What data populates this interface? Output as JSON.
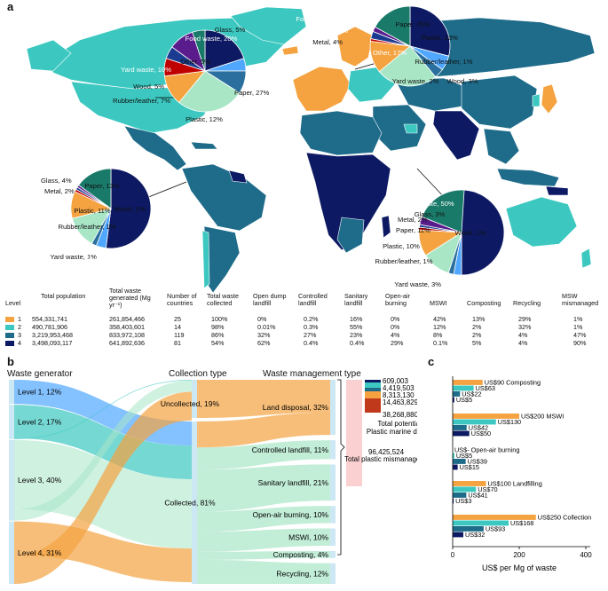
{
  "panel_labels": {
    "a": "a",
    "b": "b",
    "c": "c"
  },
  "colors": {
    "level1": "#f4a340",
    "level2": "#3cc8c0",
    "level3": "#1e6b8a",
    "level4": "#0d1a63",
    "ocean": "#ffffff",
    "nodata": "#d8d8d8",
    "waste_categories": {
      "Food waste": "#0d1a63",
      "Glass": "#4fa7ff",
      "Metal": "#2b6f9e",
      "Paper": "#a8e6c6",
      "Plastic": "#f4a340",
      "Rubber/leather": "#c00000",
      "Wood": "#1a3b8f",
      "Yard waste": "#5a1c8c",
      "Other": "#1a7a6a"
    }
  },
  "pie_annotations": {
    "pie1": [
      {
        "label": "Other, 5%"
      },
      {
        "label": "Food waste, 20%"
      },
      {
        "label": "Glass, 5%"
      },
      {
        "label": "Metal, 9%"
      },
      {
        "label": "Paper, 27%"
      },
      {
        "label": "Plastic, 12%"
      },
      {
        "label": "Rubber/leather, 7%"
      },
      {
        "label": "Wood, 5%"
      },
      {
        "label": "Yard waste, 10%"
      }
    ],
    "pie2": [
      {
        "label": "Yard waste, 2%"
      },
      {
        "label": "Wood, 3%"
      },
      {
        "label": "Rubber/leather, 1%"
      },
      {
        "label": "Other, 17%"
      },
      {
        "label": "Food waste, 29%"
      },
      {
        "label": "Glass, 6%"
      },
      {
        "label": "Metal, 4%"
      },
      {
        "label": "Paper, 25%"
      },
      {
        "label": "Plastic, 13%"
      }
    ],
    "pie3": [
      {
        "label": "Yard waste, 1%"
      },
      {
        "label": "Wood, 1%"
      },
      {
        "label": "Rubber/leather, 1%"
      },
      {
        "label": "Other, 15%"
      },
      {
        "label": "Plastic, 11%"
      },
      {
        "label": "Paper, 13%"
      },
      {
        "label": "Food waste, 52%"
      },
      {
        "label": "Metal, 2%"
      },
      {
        "label": "Glass, 4%"
      }
    ],
    "pie4": [
      {
        "label": "Yard waste, 3%"
      },
      {
        "label": "Other, 20%"
      },
      {
        "label": "Wood, 1%"
      },
      {
        "label": "Rubber/leather, 1%"
      },
      {
        "label": "Plastic, 10%"
      },
      {
        "label": "Paper, 11%"
      },
      {
        "label": "Food waste, 50%"
      },
      {
        "label": "Metal, 2%"
      },
      {
        "label": "Glass, 3%"
      }
    ]
  },
  "table": {
    "headers": {
      "level": "Level",
      "population": "Total population",
      "generated": "Total waste generated (Mg yr⁻¹)",
      "countries": "Number of countries",
      "collected": "Total waste collected",
      "open_dump": "Open dump landfill",
      "controlled": "Controlled landfill",
      "sanitary": "Sanitary landfill",
      "open_air": "Open-air burning",
      "mswi": "MSWI",
      "composting": "Composting",
      "recycling": "Recycling",
      "mismanaged": "MSW mismanaged"
    },
    "rows": [
      {
        "level": "1",
        "population": "554,331,741",
        "generated": "261,854,466",
        "countries": "25",
        "collected": "100%",
        "open_dump": "0%",
        "controlled": "0.2%",
        "sanitary": "16%",
        "open_air": "0%",
        "mswi": "42%",
        "composting": "13%",
        "recycling": "29%",
        "mismanaged": "1%"
      },
      {
        "level": "2",
        "population": "490,781,906",
        "generated": "358,403,601",
        "countries": "14",
        "collected": "98%",
        "open_dump": "0.01%",
        "controlled": "0.3%",
        "sanitary": "55%",
        "open_air": "0%",
        "mswi": "12%",
        "composting": "2%",
        "recycling": "32%",
        "mismanaged": "1%"
      },
      {
        "level": "3",
        "population": "3,219,953,468",
        "generated": "833,972,108",
        "countries": "119",
        "collected": "86%",
        "open_dump": "32%",
        "controlled": "27%",
        "sanitary": "23%",
        "open_air": "4%",
        "mswi": "8%",
        "composting": "2%",
        "recycling": "4%",
        "mismanaged": "47%"
      },
      {
        "level": "4",
        "population": "3,498,093,117",
        "generated": "641,892,636",
        "countries": "81",
        "collected": "54%",
        "open_dump": "62%",
        "controlled": "0.4%",
        "sanitary": "0.4%",
        "open_air": "29%",
        "mswi": "0.1%",
        "composting": "5%",
        "recycling": "4%",
        "mismanaged": "90%"
      }
    ]
  },
  "sankey": {
    "headers": {
      "generator": "Waste generator",
      "collection": "Collection type",
      "management": "Waste management type"
    },
    "generators": [
      {
        "label": "Level 1, 12%",
        "value": 12
      },
      {
        "label": "Level 2, 17%",
        "value": 17
      },
      {
        "label": "Level 3, 40%",
        "value": 40
      },
      {
        "label": "Level 4, 31%",
        "value": 31
      }
    ],
    "collection": [
      {
        "label": "Uncollected, 19%",
        "value": 19
      },
      {
        "label": "Collected, 81%",
        "value": 81
      }
    ],
    "management": [
      {
        "label": "Land disposal, 32%",
        "value": 32
      },
      {
        "label": "Controlled landfill, 11%",
        "value": 11
      },
      {
        "label": "Sanitary landfill, 21%",
        "value": 21
      },
      {
        "label": "Open-air burning, 10%",
        "value": 10
      },
      {
        "label": "MSWI, 10%",
        "value": 10
      },
      {
        "label": "Composting, 4%",
        "value": 4
      },
      {
        "label": "Recycling, 12%",
        "value": 12
      }
    ],
    "plastic": {
      "numbers": [
        "609,003",
        "4,419,503",
        "8,313,130",
        "14,463,829",
        "38,268,880"
      ],
      "total_potential": "Total potential",
      "marine_debris": "Plastic marine debris",
      "mismanaged_value": "96,425,524",
      "mismanaged_label": "Total plastic mismanaged"
    }
  },
  "chart_data": [
    {
      "type": "table",
      "title": "",
      "columns": [
        "Level",
        "Total population",
        "Total waste generated (Mg yr⁻¹)",
        "Number of countries",
        "Total waste collected",
        "Open dump landfill",
        "Controlled landfill",
        "Sanitary landfill",
        "Open-air burning",
        "MSWI",
        "Composting",
        "Recycling",
        "MSW mismanaged"
      ]
    },
    {
      "type": "bar",
      "xlabel": "US$ per Mg of waste",
      "xlim": [
        0,
        400
      ],
      "xticks": [
        "0",
        "200",
        "400"
      ],
      "categories": [
        "Composting",
        "MSWI",
        "Open-air burning",
        "Landfilling",
        "Collection"
      ],
      "series": [
        {
          "level": "1",
          "values": [
            90,
            200,
            0,
            100,
            250
          ],
          "labels": [
            "US$90",
            "US$200",
            "US$-",
            "US$100",
            "US$250"
          ]
        },
        {
          "level": "2",
          "values": [
            63,
            130,
            5,
            70,
            168
          ],
          "labels": [
            "US$63",
            "US$130",
            "US$5",
            "US$70",
            "US$168"
          ]
        },
        {
          "level": "3",
          "values": [
            22,
            42,
            39,
            41,
            93
          ],
          "labels": [
            "US$22",
            "US$42",
            "US$39",
            "US$41",
            "US$93"
          ]
        },
        {
          "level": "4",
          "values": [
            5,
            50,
            15,
            3,
            32
          ],
          "labels": [
            "US$5",
            "US$50",
            "US$15",
            "US$3",
            "US$32"
          ]
        }
      ]
    }
  ]
}
